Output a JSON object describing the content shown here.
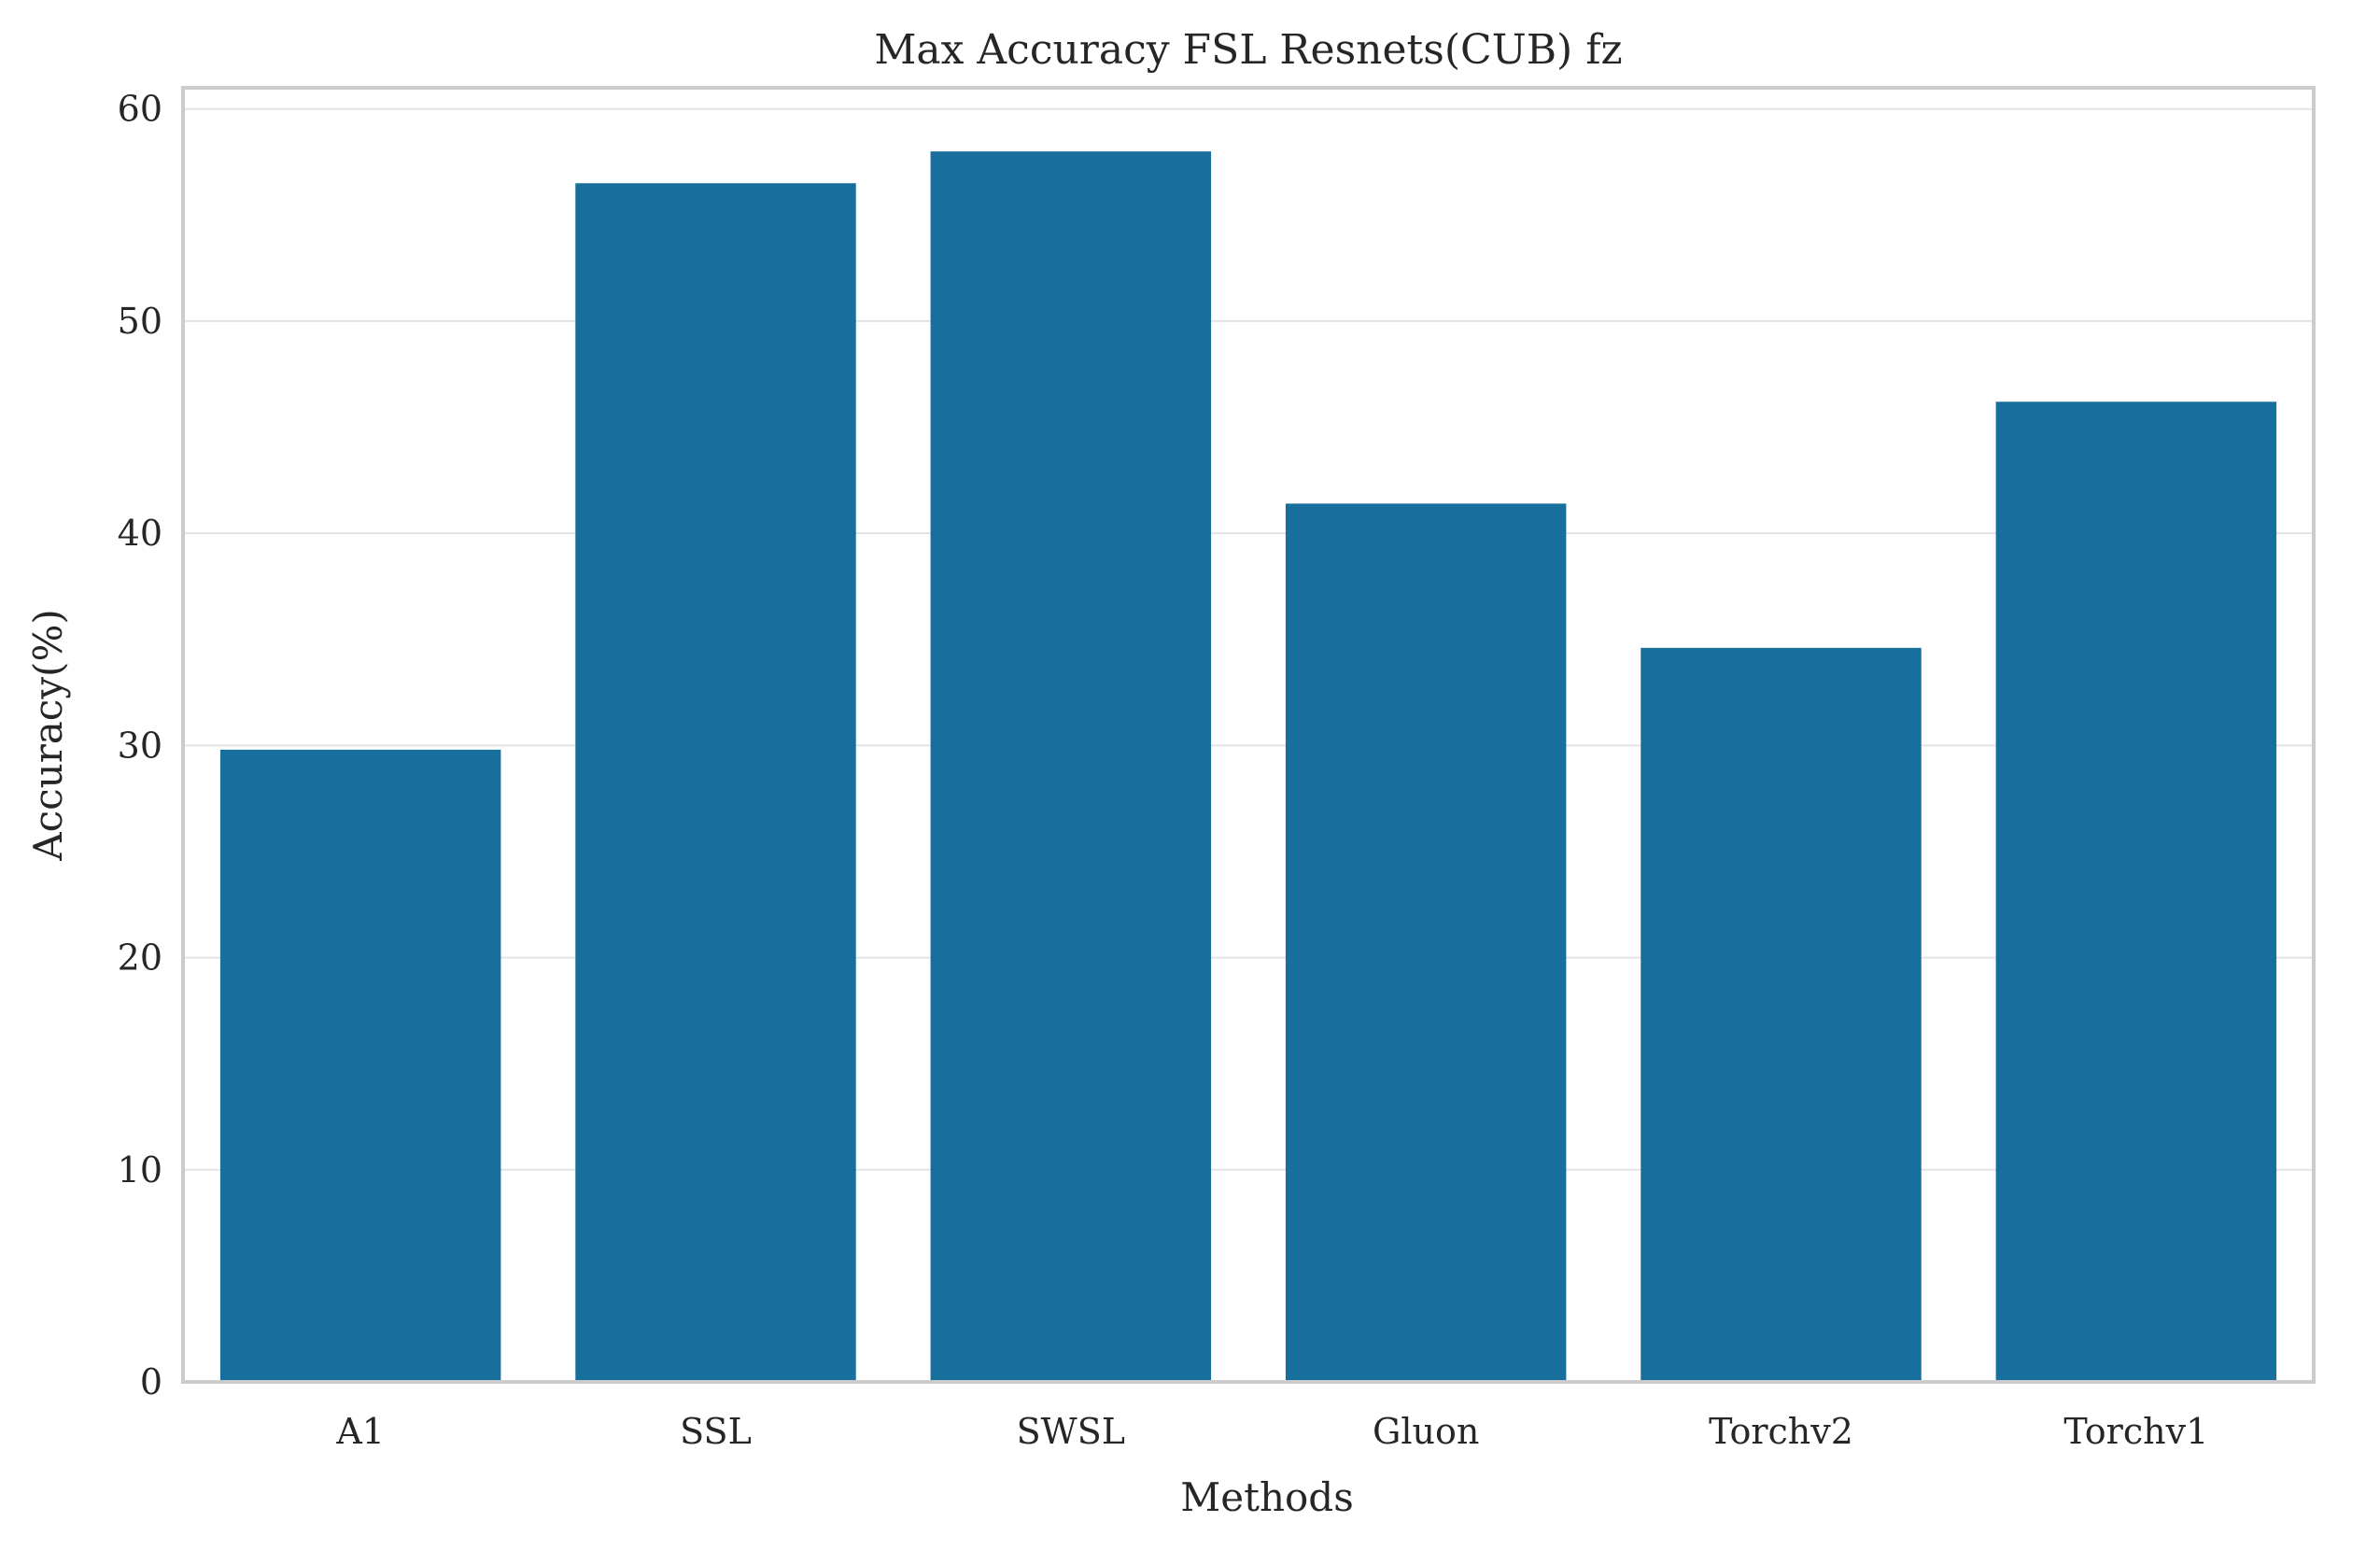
{
  "chart_data": {
    "type": "bar",
    "title": "Max Accuracy FSL Resnets(CUB) fz",
    "xlabel": "Methods",
    "ylabel": "Accuracy(%)",
    "categories": [
      "A1",
      "SSL",
      "SWSL",
      "Gluon",
      "Torchv2",
      "Torchv1"
    ],
    "values": [
      29.8,
      56.5,
      58.0,
      41.4,
      34.6,
      46.2
    ],
    "ylim": [
      0,
      61
    ],
    "yticks": [
      0,
      10,
      20,
      30,
      40,
      50,
      60
    ],
    "grid": true,
    "bar_color": "#186f9e"
  }
}
